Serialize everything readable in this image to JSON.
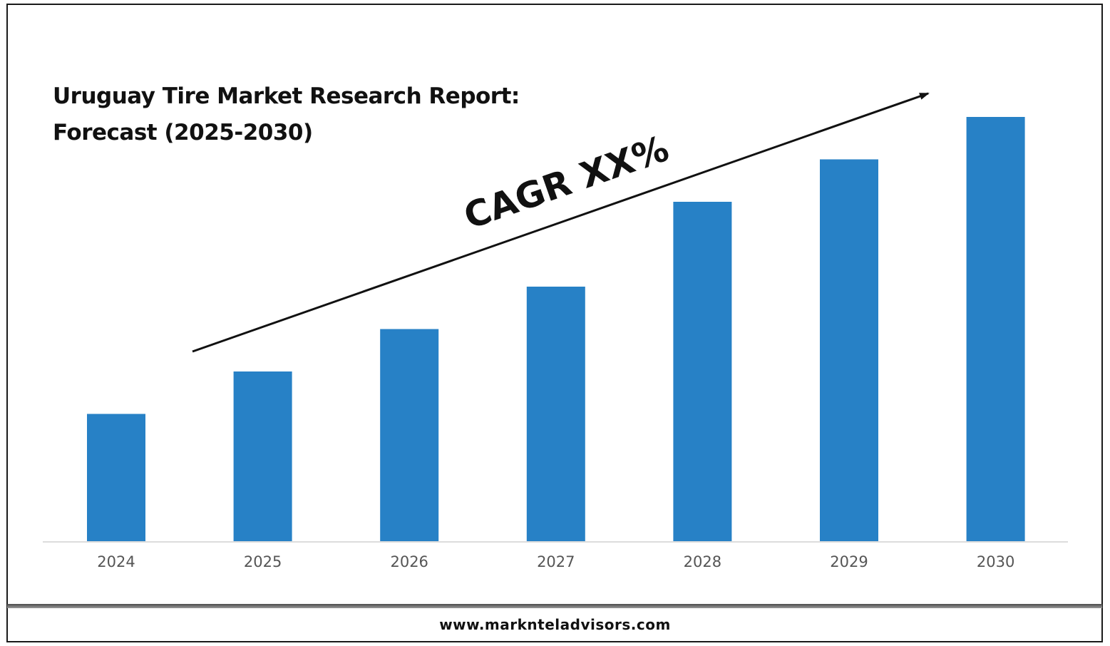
{
  "chart_data": {
    "type": "bar",
    "title": "Uruguay Tire Market Research Report: Forecast (2025-2030)",
    "title_lines": [
      "Uruguay Tire Market Research Report:",
      "Forecast (2025-2030)"
    ],
    "categories": [
      "2024",
      "2025",
      "2026",
      "2027",
      "2028",
      "2029",
      "2030"
    ],
    "values": [
      30,
      40,
      50,
      60,
      80,
      90,
      100
    ],
    "xlabel": "",
    "ylabel": "",
    "ylim": [
      0,
      100
    ],
    "grid": false,
    "annotation": "CAGR XX%",
    "colors": {
      "bar": "#2781c6",
      "axis": "#d0d0d0",
      "tick_text": "#555555",
      "arrow": "#111111"
    }
  },
  "footer": {
    "url": "www.marknteladvisors.com"
  }
}
